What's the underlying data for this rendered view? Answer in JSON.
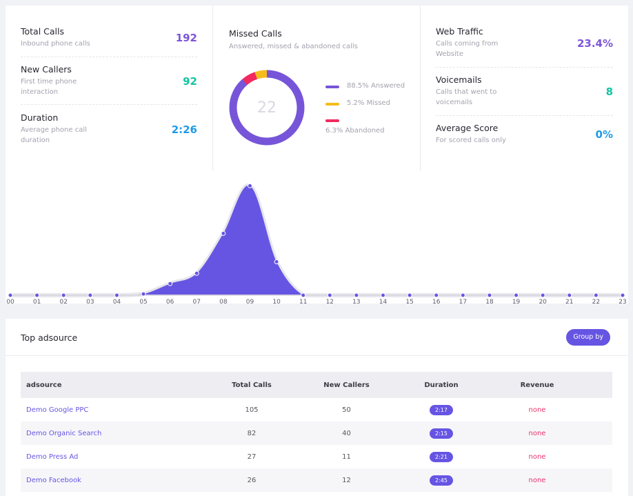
{
  "stats_left": [
    {
      "label": "Total Calls",
      "sub": "Inbound phone calls",
      "value": "192",
      "color": "#7c55d8"
    },
    {
      "label": "New Callers",
      "sub": "First time phone interaction",
      "value": "92",
      "color": "#14c3a3"
    },
    {
      "label": "Duration",
      "sub": "Average phone call duration",
      "value": "2:26",
      "color": "#1e9be8"
    }
  ],
  "missed_calls": {
    "title": "Missed Calls",
    "subtitle": "Answered, missed & abandoned calls",
    "center_value": "22",
    "legend": [
      {
        "label": "88.5% Answered",
        "pct": 88.5,
        "color": "#7755d8"
      },
      {
        "label": "5.2% Missed",
        "pct": 5.2,
        "color": "#f5bc1c"
      },
      {
        "label": "6.3% Abandoned",
        "pct": 6.3,
        "color": "#f2295e"
      }
    ]
  },
  "stats_right": [
    {
      "label": "Web Traffic",
      "sub": "Calls coming from Website",
      "value": "23.4%",
      "color": "#7c55d8"
    },
    {
      "label": "Voicemails",
      "sub": "Calls that went to voicemails",
      "value": "8",
      "color": "#14c3a3"
    },
    {
      "label": "Average Score",
      "sub": "For scored calls only",
      "value": "0%",
      "color": "#1e9be8"
    }
  ],
  "chart_data": {
    "type": "area",
    "x": [
      "00",
      "01",
      "02",
      "03",
      "04",
      "05",
      "06",
      "07",
      "08",
      "09",
      "10",
      "11",
      "12",
      "13",
      "14",
      "15",
      "16",
      "17",
      "18",
      "19",
      "20",
      "21",
      "22",
      "23"
    ],
    "values": [
      0,
      0,
      0,
      0,
      0,
      1,
      9,
      17,
      48,
      85,
      26,
      0,
      0,
      0,
      0,
      0,
      0,
      0,
      0,
      0,
      0,
      0,
      0,
      0
    ],
    "ylim": [
      0,
      90
    ],
    "color": "#6655e3"
  },
  "adsource": {
    "title": "Top  adsource",
    "group_button": "Group by",
    "columns": [
      "adsource",
      "Total Calls",
      "New Callers",
      "Duration",
      "Revenue"
    ],
    "rows": [
      {
        "name": "Demo Google PPC",
        "total": "105",
        "new": "50",
        "duration": "2:17",
        "revenue": "none"
      },
      {
        "name": "Demo Organic Search",
        "total": "82",
        "new": "40",
        "duration": "2:15",
        "revenue": "none"
      },
      {
        "name": "Demo Press Ad",
        "total": "27",
        "new": "11",
        "duration": "2:21",
        "revenue": "none"
      },
      {
        "name": "Demo Facebook",
        "total": "26",
        "new": "12",
        "duration": "2:45",
        "revenue": "none"
      }
    ]
  }
}
